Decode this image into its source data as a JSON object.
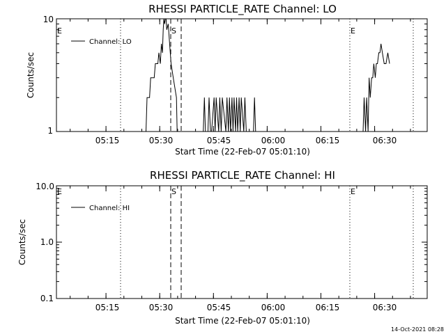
{
  "chart_data": [
    {
      "type": "line",
      "title": "RHESSI PARTICLE_RATE Channel: LO",
      "xlabel": "Start Time (22-Feb-07 05:01:10)",
      "ylabel": "Counts/sec",
      "yscale": "log",
      "ylim": [
        1,
        10
      ],
      "xlim_minutes": [
        0,
        103.5
      ],
      "x_tick_labels": [
        "05:15",
        "05:30",
        "05:45",
        "06:00",
        "06:15",
        "06:30"
      ],
      "x_tick_minutes": [
        13.83,
        28.83,
        43.83,
        58.83,
        73.83,
        88.83
      ],
      "y_tick_labels": [
        "1",
        "10"
      ],
      "y_tick_values": [
        1,
        10
      ],
      "legend": "Channel: LO",
      "series": [
        {
          "name": "Channel: LO",
          "x_minutes": [
            0,
            25,
            25.3,
            26,
            26.3,
            27.3,
            27.6,
            28.3,
            28.6,
            29,
            29.3,
            29.6,
            29.8,
            30,
            30.2,
            30.4,
            30.6,
            30.8,
            31.2,
            31.6,
            32,
            32.6,
            33.5,
            33.7,
            41,
            41.3,
            41.6,
            42.3,
            42.6,
            43,
            43.3,
            44,
            44.3,
            44.6,
            45.3,
            45.6,
            46,
            46.3,
            47.3,
            47.6,
            48,
            48.3,
            48.6,
            49,
            49.3,
            49.6,
            50,
            50.3,
            50.6,
            51,
            51.3,
            51.6,
            52.3,
            52.6,
            53,
            53.3,
            55,
            55.3,
            55.6,
            56,
            85.6,
            85.9,
            86.3,
            86.6,
            87,
            87.3,
            87.6,
            88,
            88.3,
            88.6,
            89,
            89.3,
            89.6,
            90,
            90.3,
            90.6,
            91,
            91.5,
            92,
            92.5,
            93
          ],
          "values": [
            null,
            1,
            2,
            2,
            3,
            3,
            4,
            4,
            5,
            4,
            6,
            5,
            8,
            10,
            9,
            10,
            10,
            8,
            9,
            6,
            4,
            3,
            2,
            1,
            1,
            2,
            1,
            1,
            2,
            1,
            1,
            2,
            1,
            2,
            1,
            2,
            1,
            2,
            1,
            2,
            1,
            2,
            1,
            2,
            1,
            2,
            1,
            2,
            1,
            2,
            1,
            2,
            1,
            2,
            1,
            1,
            1,
            2,
            1,
            1,
            1,
            2,
            1,
            2,
            1,
            3,
            2,
            3,
            3,
            4,
            3,
            4,
            4,
            5,
            5,
            6,
            5,
            4,
            4,
            5,
            4
          ]
        }
      ],
      "event_marks": [
        {
          "label": "E",
          "minute": 0
        },
        {
          "label": "S",
          "minute": 30.5
        },
        {
          "label": "E",
          "minute": 77.8
        }
      ]
    },
    {
      "type": "line",
      "title": "RHESSI PARTICLE_RATE Channel: HI",
      "xlabel": "Start Time (22-Feb-07 05:01:10)",
      "ylabel": "Counts/sec",
      "yscale": "log",
      "ylim": [
        0.1,
        10
      ],
      "xlim_minutes": [
        0,
        103.5
      ],
      "x_tick_labels": [
        "05:15",
        "05:30",
        "05:45",
        "06:00",
        "06:15",
        "06:30"
      ],
      "x_tick_minutes": [
        13.83,
        28.83,
        43.83,
        58.83,
        73.83,
        88.83
      ],
      "y_tick_labels": [
        "0.1",
        "1.0",
        "10.0"
      ],
      "y_tick_values": [
        0.1,
        1,
        10
      ],
      "legend": "Channel: HI",
      "series": [
        {
          "name": "Channel: HI",
          "x_minutes": [],
          "values": []
        }
      ],
      "event_marks": [
        {
          "label": "E",
          "minute": 0
        },
        {
          "label": "S",
          "minute": 30.5
        },
        {
          "label": "E",
          "minute": 77.8
        }
      ]
    }
  ],
  "timestamp": "14-Oct-2021 08:28"
}
